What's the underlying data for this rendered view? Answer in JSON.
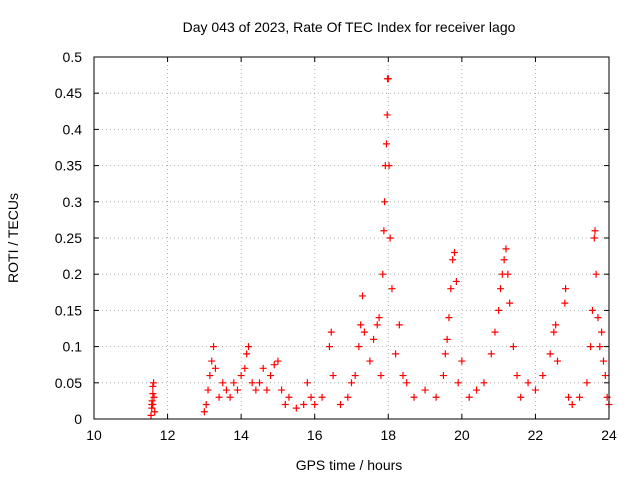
{
  "chart_data": {
    "type": "scatter",
    "title": "Day 043 of 2023, Rate Of TEC Index for receiver lago",
    "xlabel": "GPS time / hours",
    "ylabel": "ROTI / TECUs",
    "xlim": [
      10,
      24
    ],
    "ylim": [
      0,
      0.5
    ],
    "x_ticks": [
      10,
      12,
      14,
      16,
      18,
      20,
      22,
      24
    ],
    "x_tick_labels": [
      "10",
      "12",
      "14",
      "16",
      "18",
      "20",
      "22",
      "24"
    ],
    "y_ticks": [
      0,
      0.05,
      0.1,
      0.15,
      0.2,
      0.25,
      0.3,
      0.35,
      0.4,
      0.45,
      0.5
    ],
    "y_tick_labels": [
      "0",
      "0.05",
      "0.1",
      "0.15",
      "0.2",
      "0.25",
      "0.3",
      "0.35",
      "0.4",
      "0.45",
      "0.5"
    ],
    "grid": true,
    "marker": "plus",
    "series_color": "#ff0000",
    "series": [
      {
        "points": [
          [
            11.55,
            0.005
          ],
          [
            11.57,
            0.015
          ],
          [
            11.58,
            0.025
          ],
          [
            11.6,
            0.035
          ],
          [
            11.6,
            0.045
          ],
          [
            11.62,
            0.05
          ],
          [
            11.63,
            0.03
          ],
          [
            11.65,
            0.01
          ],
          [
            11.57,
            0.02
          ],
          [
            11.6,
            0.02
          ],
          [
            13.0,
            0.01
          ],
          [
            13.05,
            0.02
          ],
          [
            13.1,
            0.04
          ],
          [
            13.15,
            0.06
          ],
          [
            13.2,
            0.08
          ],
          [
            13.25,
            0.1
          ],
          [
            13.3,
            0.07
          ],
          [
            13.4,
            0.03
          ],
          [
            13.5,
            0.05
          ],
          [
            13.6,
            0.04
          ],
          [
            13.7,
            0.03
          ],
          [
            13.8,
            0.05
          ],
          [
            13.9,
            0.04
          ],
          [
            14.0,
            0.06
          ],
          [
            14.1,
            0.07
          ],
          [
            14.15,
            0.09
          ],
          [
            14.2,
            0.1
          ],
          [
            14.3,
            0.05
          ],
          [
            14.4,
            0.04
          ],
          [
            14.5,
            0.05
          ],
          [
            14.6,
            0.07
          ],
          [
            14.7,
            0.04
          ],
          [
            14.8,
            0.06
          ],
          [
            14.9,
            0.075
          ],
          [
            15.0,
            0.08
          ],
          [
            15.1,
            0.04
          ],
          [
            15.2,
            0.02
          ],
          [
            15.3,
            0.03
          ],
          [
            15.5,
            0.015
          ],
          [
            15.7,
            0.02
          ],
          [
            15.8,
            0.05
          ],
          [
            15.9,
            0.03
          ],
          [
            16.0,
            0.02
          ],
          [
            16.2,
            0.03
          ],
          [
            16.4,
            0.1
          ],
          [
            16.45,
            0.12
          ],
          [
            16.5,
            0.06
          ],
          [
            16.7,
            0.02
          ],
          [
            16.9,
            0.03
          ],
          [
            17.0,
            0.05
          ],
          [
            17.1,
            0.06
          ],
          [
            17.2,
            0.1
          ],
          [
            17.25,
            0.13
          ],
          [
            17.3,
            0.17
          ],
          [
            17.35,
            0.12
          ],
          [
            17.5,
            0.08
          ],
          [
            17.6,
            0.11
          ],
          [
            17.7,
            0.13
          ],
          [
            17.75,
            0.14
          ],
          [
            17.8,
            0.06
          ],
          [
            17.85,
            0.2
          ],
          [
            17.88,
            0.26
          ],
          [
            17.9,
            0.3
          ],
          [
            17.92,
            0.35
          ],
          [
            17.95,
            0.38
          ],
          [
            17.97,
            0.42
          ],
          [
            17.98,
            0.47
          ],
          [
            18.0,
            0.47
          ],
          [
            18.02,
            0.35
          ],
          [
            18.05,
            0.25
          ],
          [
            18.1,
            0.18
          ],
          [
            18.2,
            0.09
          ],
          [
            18.3,
            0.13
          ],
          [
            18.4,
            0.06
          ],
          [
            18.5,
            0.05
          ],
          [
            18.7,
            0.03
          ],
          [
            19.0,
            0.04
          ],
          [
            19.3,
            0.03
          ],
          [
            19.5,
            0.06
          ],
          [
            19.55,
            0.09
          ],
          [
            19.6,
            0.11
          ],
          [
            19.65,
            0.14
          ],
          [
            19.7,
            0.18
          ],
          [
            19.75,
            0.22
          ],
          [
            19.8,
            0.23
          ],
          [
            19.85,
            0.19
          ],
          [
            19.9,
            0.05
          ],
          [
            20.0,
            0.08
          ],
          [
            20.2,
            0.03
          ],
          [
            20.4,
            0.04
          ],
          [
            20.6,
            0.05
          ],
          [
            20.8,
            0.09
          ],
          [
            20.9,
            0.12
          ],
          [
            21.0,
            0.15
          ],
          [
            21.05,
            0.18
          ],
          [
            21.1,
            0.2
          ],
          [
            21.15,
            0.22
          ],
          [
            21.2,
            0.235
          ],
          [
            21.25,
            0.2
          ],
          [
            21.3,
            0.16
          ],
          [
            21.4,
            0.1
          ],
          [
            21.5,
            0.06
          ],
          [
            21.6,
            0.03
          ],
          [
            21.8,
            0.05
          ],
          [
            22.0,
            0.04
          ],
          [
            22.2,
            0.06
          ],
          [
            22.4,
            0.09
          ],
          [
            22.5,
            0.12
          ],
          [
            22.55,
            0.13
          ],
          [
            22.6,
            0.08
          ],
          [
            22.8,
            0.16
          ],
          [
            22.82,
            0.18
          ],
          [
            22.9,
            0.03
          ],
          [
            23.0,
            0.02
          ],
          [
            23.2,
            0.03
          ],
          [
            23.4,
            0.05
          ],
          [
            23.5,
            0.1
          ],
          [
            23.55,
            0.15
          ],
          [
            23.6,
            0.25
          ],
          [
            23.62,
            0.26
          ],
          [
            23.65,
            0.2
          ],
          [
            23.7,
            0.14
          ],
          [
            23.75,
            0.1
          ],
          [
            23.8,
            0.12
          ],
          [
            23.85,
            0.08
          ],
          [
            23.9,
            0.06
          ],
          [
            23.95,
            0.03
          ],
          [
            24.0,
            0.02
          ]
        ]
      }
    ]
  }
}
